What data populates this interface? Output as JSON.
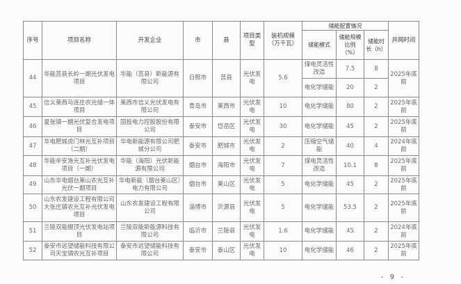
{
  "header": {
    "seq": "序号",
    "name": "项目名称",
    "company": "开发企业",
    "city": "市",
    "county": "县",
    "type": "项目类型",
    "capacity": "装机规模（万千瓦）",
    "storage_group": "储能配置情况",
    "storage_mode": "储能模式",
    "storage_ratio": "储能规模比例（%）",
    "storage_hours": "储能时长（h）",
    "grid_time": "并网时间"
  },
  "rows": [
    {
      "seq": "44",
      "name": "华能莒县长岭一期光伏发电项目",
      "company": "华能（莒县）新能源有限公司",
      "city": "日照市",
      "county": "莒县",
      "type": "光伏发电",
      "capacity": "5.6",
      "storage": [
        {
          "mode": "煤电灵活性改造",
          "ratio": "7.5",
          "hours": "8"
        },
        {
          "mode": "电化学储能",
          "ratio": "20",
          "hours": "2"
        }
      ],
      "grid_time": "2025年底前"
    },
    {
      "seq": "45",
      "name": "信义莱西马连庄农光储一体项目",
      "company": "莱西市信义光伏发电有限公司",
      "city": "青岛市",
      "county": "莱西市",
      "type": "光伏发电",
      "capacity": "10",
      "storage": [
        {
          "mode": "电化学储能",
          "ratio": "80",
          "hours": "2"
        }
      ],
      "grid_time": "2025年底前"
    },
    {
      "seq": "46",
      "name": "夏张镇一期光伏复合发电项目",
      "company": "国投电力控股股份有限公司",
      "city": "泰安市",
      "county": "岱岳区",
      "type": "光伏发电",
      "capacity": "30",
      "storage": [
        {
          "mode": "电化学储能",
          "ratio": "45",
          "hours": "2"
        }
      ],
      "grid_time": "2025年底前"
    },
    {
      "seq": "47",
      "name": "华电肥城虎门林光互补项目（二期）",
      "company": "华电新能源有限公司肥城分公司",
      "city": "泰安市",
      "county": "肥城市",
      "type": "光伏发电",
      "capacity": "2",
      "storage": [
        {
          "mode": "压缩空气储能",
          "ratio": "40",
          "hours": "4"
        }
      ],
      "grid_time": "2024年底前"
    },
    {
      "seq": "48",
      "name": "华能辛安渔光互补光伏发电项目（一期）",
      "company": "华能（海阳）光伏新能源有限公司",
      "city": "烟台市",
      "county": "海阳市",
      "type": "光伏发电",
      "capacity": "7",
      "storage": [
        {
          "mode": "煤电灵活性改造",
          "ratio": "10.1",
          "hours": "8"
        }
      ],
      "grid_time": "2025年底前"
    },
    {
      "seq": "49",
      "name": "山东华电烟台莱山农光互补光伏一期项目",
      "company": "华电新能（烟台莱山区）电力有限公司",
      "city": "烟台市",
      "county": "莱山区",
      "type": "光伏发电",
      "capacity": "5",
      "storage": [
        {
          "mode": "电化学储能",
          "ratio": "45",
          "hours": "2"
        }
      ],
      "grid_time": "2025年底前"
    },
    {
      "seq": "50",
      "name": "山东农发建设工程有限公司大张庄镇农光互补光伏发电项目",
      "company": "山东农发建设工程有限公司",
      "city": "淄博市",
      "county": "沂源县",
      "type": "光伏发电",
      "capacity": "5",
      "storage": [
        {
          "mode": "电化学储能",
          "ratio": "53.5",
          "hours": "2"
        }
      ],
      "grid_time": "2025年底前"
    },
    {
      "seq": "51",
      "name": "兰陵双能棚顶光伏发电站项目",
      "company": "兰陵双能新能源科技有限公司",
      "city": "临沂市",
      "county": "兰陵县",
      "type": "光伏发电",
      "capacity": "1.6",
      "storage": [
        {
          "mode": "电化学储能",
          "ratio": "45",
          "hours": "2"
        }
      ],
      "grid_time": "2024年底前"
    },
    {
      "seq": "52",
      "name": "泰安市远望储能科技有限公司天宝镇农光互补项目",
      "company": "泰安市远望储能科技有限公司",
      "city": "泰安市",
      "county": "泰山区",
      "type": "光伏发电",
      "capacity": "10",
      "storage": [
        {
          "mode": "电化学储能",
          "ratio": "46",
          "hours": "2"
        }
      ],
      "grid_time": "2025年底前"
    }
  ],
  "page_number": "- 9 -"
}
